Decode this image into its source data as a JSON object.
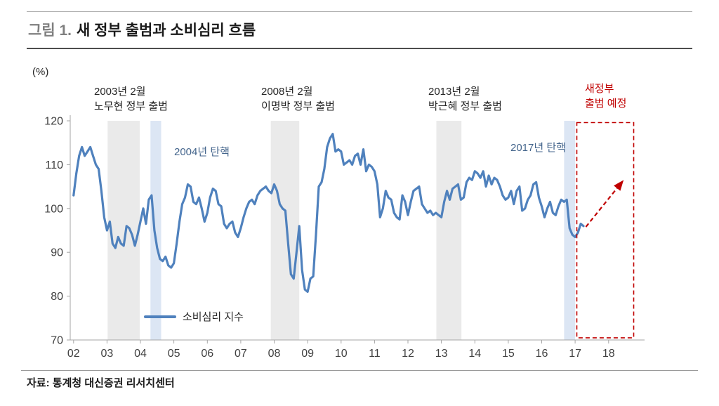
{
  "figure": {
    "title_prefix": "그림 1.",
    "title": "새 정부 출범과 소비심리 흐름",
    "y_unit": "(%)",
    "source": "자료: 통계청 대신증권 리서치센터"
  },
  "annotations": {
    "gov2003": "2003년 2월\n노무현 정부 출범",
    "imp2004": "2004년 탄핵",
    "gov2008": "2008년 2월\n이명박 정부 출범",
    "gov2013": "2013년 2월\n박근혜 정부 출범",
    "imp2017": "2017년 탄핵",
    "newgov": "새정부\n출범 예정"
  },
  "chart_data": {
    "type": "line",
    "title": "새 정부 출범과 소비심리 흐름",
    "ylabel": "(%)",
    "ylim": [
      70,
      120
    ],
    "yticks": [
      70,
      80,
      90,
      100,
      110,
      120
    ],
    "xlim": [
      2001.9,
      2018.95
    ],
    "xticks": [
      2002,
      2003,
      2004,
      2005,
      2006,
      2007,
      2008,
      2009,
      2010,
      2011,
      2012,
      2013,
      2014,
      2015,
      2016,
      2017,
      2018
    ],
    "xticklabels": [
      "02",
      "03",
      "04",
      "05",
      "06",
      "07",
      "08",
      "09",
      "10",
      "11",
      "12",
      "13",
      "14",
      "15",
      "16",
      "17",
      "18"
    ],
    "grid": false,
    "legend_position": "inside-bottom-left",
    "series": [
      {
        "name": "소비심리 지수",
        "color": "#4f81bd",
        "start_year": 2002,
        "interval_months": 1,
        "values": [
          103,
          108,
          112,
          114,
          112,
          113,
          114,
          112,
          110,
          109,
          104,
          98,
          95,
          97,
          92,
          91,
          93.5,
          92,
          91.5,
          96,
          95.5,
          94,
          91.5,
          94,
          97,
          100,
          96.5,
          102,
          103,
          95,
          91,
          88.5,
          88,
          89,
          87,
          86.5,
          87.5,
          92,
          97,
          101,
          102.5,
          105.5,
          105,
          101.5,
          101,
          102.5,
          100,
          97,
          99,
          102.5,
          104.5,
          104,
          101,
          100.5,
          96.5,
          95.5,
          96.5,
          97,
          94.5,
          93.5,
          95.5,
          98,
          100,
          101.5,
          102,
          101,
          103,
          104,
          104.5,
          105,
          104,
          103.5,
          105.5,
          104,
          101,
          100,
          99.5,
          92,
          85,
          84,
          90,
          96,
          86,
          81.5,
          81,
          84,
          84.5,
          94,
          105,
          106,
          109,
          114,
          116,
          117,
          113,
          113.5,
          113,
          110,
          110.5,
          111,
          110,
          112,
          112.5,
          110,
          113.5,
          108.5,
          110,
          109.5,
          108.5,
          105.5,
          98,
          100,
          104,
          102.5,
          102,
          99,
          98,
          97.5,
          103,
          101.5,
          98.5,
          101.5,
          104,
          104.5,
          105,
          101,
          100,
          99,
          99.5,
          98.5,
          99,
          98.5,
          98,
          101.5,
          104,
          102,
          104.5,
          105,
          105.5,
          102,
          102.5,
          106,
          107,
          106.5,
          108.5,
          108,
          107,
          108.5,
          105,
          107.5,
          105.5,
          107,
          106.5,
          105,
          103,
          102,
          102.5,
          104,
          101,
          104,
          105,
          99.5,
          100,
          102,
          103,
          105.5,
          106,
          102.5,
          100.5,
          98,
          100,
          101.5,
          99,
          98.5,
          100.5,
          102,
          101.5,
          102,
          95.5,
          94,
          93.5,
          94.5,
          96.5,
          96
        ]
      }
    ],
    "bands": [
      {
        "label": "inauguration-2003",
        "x0": 2003.02,
        "x1": 2003.98,
        "color": "#eaeaea"
      },
      {
        "label": "impeachment-2004",
        "x0": 2004.3,
        "x1": 2004.62,
        "color": "#dce6f4"
      },
      {
        "label": "inauguration-2008",
        "x0": 2007.9,
        "x1": 2008.75,
        "color": "#eaeaea"
      },
      {
        "label": "inauguration-2013",
        "x0": 2012.85,
        "x1": 2013.6,
        "color": "#eaeaea"
      },
      {
        "label": "impeachment-2017",
        "x0": 2016.67,
        "x1": 2017.0,
        "color": "#dce6f4"
      }
    ],
    "projection_box": {
      "x0": 2017.05,
      "x1": 2018.75,
      "y0": 70.5,
      "y1": 119.6,
      "color": "#c00000"
    },
    "projection_arrow": {
      "x0": 2017.32,
      "y0": 95.8,
      "x1": 2018.45,
      "y1": 106.5,
      "color": "#c00000"
    }
  }
}
